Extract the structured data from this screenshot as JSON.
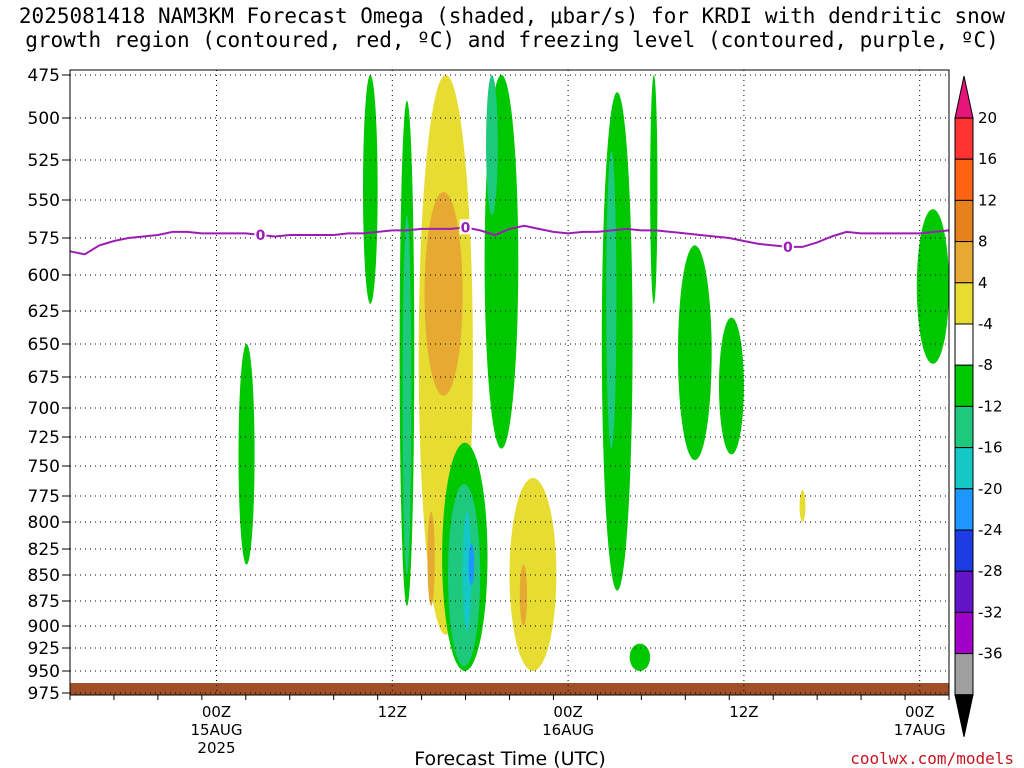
{
  "title_line1": "2025081418 NAM3KM Forecast Omega (shaded, μbar/s) for KRDI with dendritic snow",
  "title_line2": "growth region (contoured, red, ºC) and freezing level (contoured, purple, ºC)",
  "credit": "coolwx.com/models",
  "chart_data": {
    "type": "heatmap",
    "title": "2025081418 NAM3KM Forecast Omega (shaded, μbar/s) for KRDI with dendritic snow growth region (contoured, red, ºC) and freezing level (contoured, purple, ºC)",
    "xlabel": "Forecast Time (UTC)",
    "ylabel": "",
    "x_range_hours_from_14Z_14AUG": [
      0,
      60
    ],
    "y_levels_hPa": [
      475,
      500,
      525,
      550,
      575,
      600,
      625,
      650,
      675,
      700,
      725,
      750,
      775,
      800,
      825,
      850,
      875,
      900,
      925,
      950,
      975
    ],
    "x_ticks": [
      {
        "label": "00Z",
        "sub": "15AUG",
        "sub2": "2025",
        "hour": 10
      },
      {
        "label": "12Z",
        "sub": "",
        "sub2": "",
        "hour": 22
      },
      {
        "label": "00Z",
        "sub": "16AUG",
        "sub2": "",
        "hour": 34
      },
      {
        "label": "12Z",
        "sub": "",
        "sub2": "",
        "hour": 46
      },
      {
        "label": "00Z",
        "sub": "17AUG",
        "sub2": "",
        "hour": 58
      }
    ],
    "colorbar": {
      "labels": [
        "20",
        "16",
        "12",
        "8",
        "4",
        "-4",
        "-8",
        "-12",
        "-16",
        "-20",
        "-24",
        "-28",
        "-32",
        "-36"
      ],
      "colors": [
        "#e6157a",
        "#ff3232",
        "#ff6414",
        "#e6821e",
        "#e6aa32",
        "#e6dc32",
        "#ffffff",
        "#00c800",
        "#1ec87d",
        "#14c8c8",
        "#1e96ff",
        "#1e3ce6",
        "#6414c8",
        "#a000c8",
        "#a0a0a0",
        "#000000"
      ]
    },
    "freezing_level": {
      "label": "0",
      "color": "#9b1eb4",
      "points": [
        [
          0,
          584
        ],
        [
          1,
          586
        ],
        [
          2,
          580
        ],
        [
          3,
          577
        ],
        [
          4,
          575
        ],
        [
          5,
          574
        ],
        [
          6,
          573
        ],
        [
          7,
          571
        ],
        [
          8,
          571
        ],
        [
          9,
          572
        ],
        [
          10,
          572
        ],
        [
          11,
          572
        ],
        [
          12,
          572
        ],
        [
          13,
          573
        ],
        [
          14,
          574
        ],
        [
          15,
          573
        ],
        [
          16,
          573
        ],
        [
          17,
          573
        ],
        [
          18,
          573
        ],
        [
          19,
          572
        ],
        [
          20,
          572
        ],
        [
          21,
          571
        ],
        [
          22,
          570
        ],
        [
          23,
          570
        ],
        [
          24,
          569
        ],
        [
          25,
          569
        ],
        [
          26,
          569
        ],
        [
          27,
          568
        ],
        [
          28,
          570
        ],
        [
          29,
          573
        ],
        [
          30,
          569
        ],
        [
          31,
          567
        ],
        [
          32,
          569
        ],
        [
          33,
          571
        ],
        [
          34,
          572
        ],
        [
          35,
          571
        ],
        [
          36,
          571
        ],
        [
          37,
          570
        ],
        [
          38,
          569
        ],
        [
          39,
          570
        ],
        [
          40,
          570
        ],
        [
          41,
          571
        ],
        [
          42,
          572
        ],
        [
          43,
          573
        ],
        [
          44,
          574
        ],
        [
          45,
          575
        ],
        [
          46,
          577
        ],
        [
          47,
          579
        ],
        [
          48,
          580
        ],
        [
          49,
          581
        ],
        [
          50,
          581
        ],
        [
          51,
          578
        ],
        [
          52,
          574
        ],
        [
          53,
          571
        ],
        [
          54,
          572
        ],
        [
          55,
          572
        ],
        [
          56,
          572
        ],
        [
          57,
          572
        ],
        [
          58,
          572
        ],
        [
          59,
          571
        ],
        [
          60,
          570
        ]
      ]
    },
    "omega_regions": [
      {
        "color": "#00c800",
        "t0": 11.5,
        "t1": 12.6,
        "p_top": 650,
        "p_bot": 840
      },
      {
        "color": "#00c800",
        "t0": 20.0,
        "t1": 21.0,
        "p_top": 475,
        "p_bot": 620
      },
      {
        "color": "#00c800",
        "t0": 22.5,
        "t1": 23.5,
        "p_top": 490,
        "p_bot": 880
      },
      {
        "color": "#1ec87d",
        "t0": 22.7,
        "t1": 23.3,
        "p_top": 560,
        "p_bot": 850
      },
      {
        "color": "#e6dc32",
        "t0": 23.8,
        "t1": 27.5,
        "p_top": 475,
        "p_bot": 910
      },
      {
        "color": "#e6aa32",
        "t0": 24.2,
        "t1": 26.8,
        "p_top": 545,
        "p_bot": 690
      },
      {
        "color": "#e6aa32",
        "t0": 24.4,
        "t1": 24.9,
        "p_top": 790,
        "p_bot": 880
      },
      {
        "color": "#00c800",
        "t0": 25.4,
        "t1": 28.5,
        "p_top": 730,
        "p_bot": 950
      },
      {
        "color": "#1ec87d",
        "t0": 25.8,
        "t1": 28.0,
        "p_top": 765,
        "p_bot": 945
      },
      {
        "color": "#14c8c8",
        "t0": 26.8,
        "t1": 27.4,
        "p_top": 790,
        "p_bot": 905
      },
      {
        "color": "#1e96ff",
        "t0": 27.2,
        "t1": 27.6,
        "p_top": 820,
        "p_bot": 860
      },
      {
        "color": "#00c800",
        "t0": 28.3,
        "t1": 30.6,
        "p_top": 475,
        "p_bot": 735
      },
      {
        "color": "#1ec87d",
        "t0": 28.4,
        "t1": 29.2,
        "p_top": 475,
        "p_bot": 560
      },
      {
        "color": "#e6dc32",
        "t0": 30.0,
        "t1": 33.2,
        "p_top": 760,
        "p_bot": 950
      },
      {
        "color": "#e6aa32",
        "t0": 30.7,
        "t1": 31.2,
        "p_top": 840,
        "p_bot": 900
      },
      {
        "color": "#00c800",
        "t0": 36.3,
        "t1": 38.4,
        "p_top": 485,
        "p_bot": 865
      },
      {
        "color": "#1ec87d",
        "t0": 36.6,
        "t1": 37.3,
        "p_top": 520,
        "p_bot": 735
      },
      {
        "color": "#00c800",
        "t0": 38.2,
        "t1": 39.6,
        "p_top": 920,
        "p_bot": 950
      },
      {
        "color": "#00c800",
        "t0": 39.6,
        "t1": 40.1,
        "p_top": 475,
        "p_bot": 620
      },
      {
        "color": "#00c800",
        "t0": 41.5,
        "t1": 43.8,
        "p_top": 580,
        "p_bot": 745
      },
      {
        "color": "#00c800",
        "t0": 44.3,
        "t1": 46.0,
        "p_top": 630,
        "p_bot": 740
      },
      {
        "color": "#e6dc32",
        "t0": 49.8,
        "t1": 50.2,
        "p_top": 770,
        "p_bot": 800
      },
      {
        "color": "#00c800",
        "t0": 57.8,
        "t1": 60.0,
        "p_top": 556,
        "p_bot": 665
      }
    ]
  }
}
